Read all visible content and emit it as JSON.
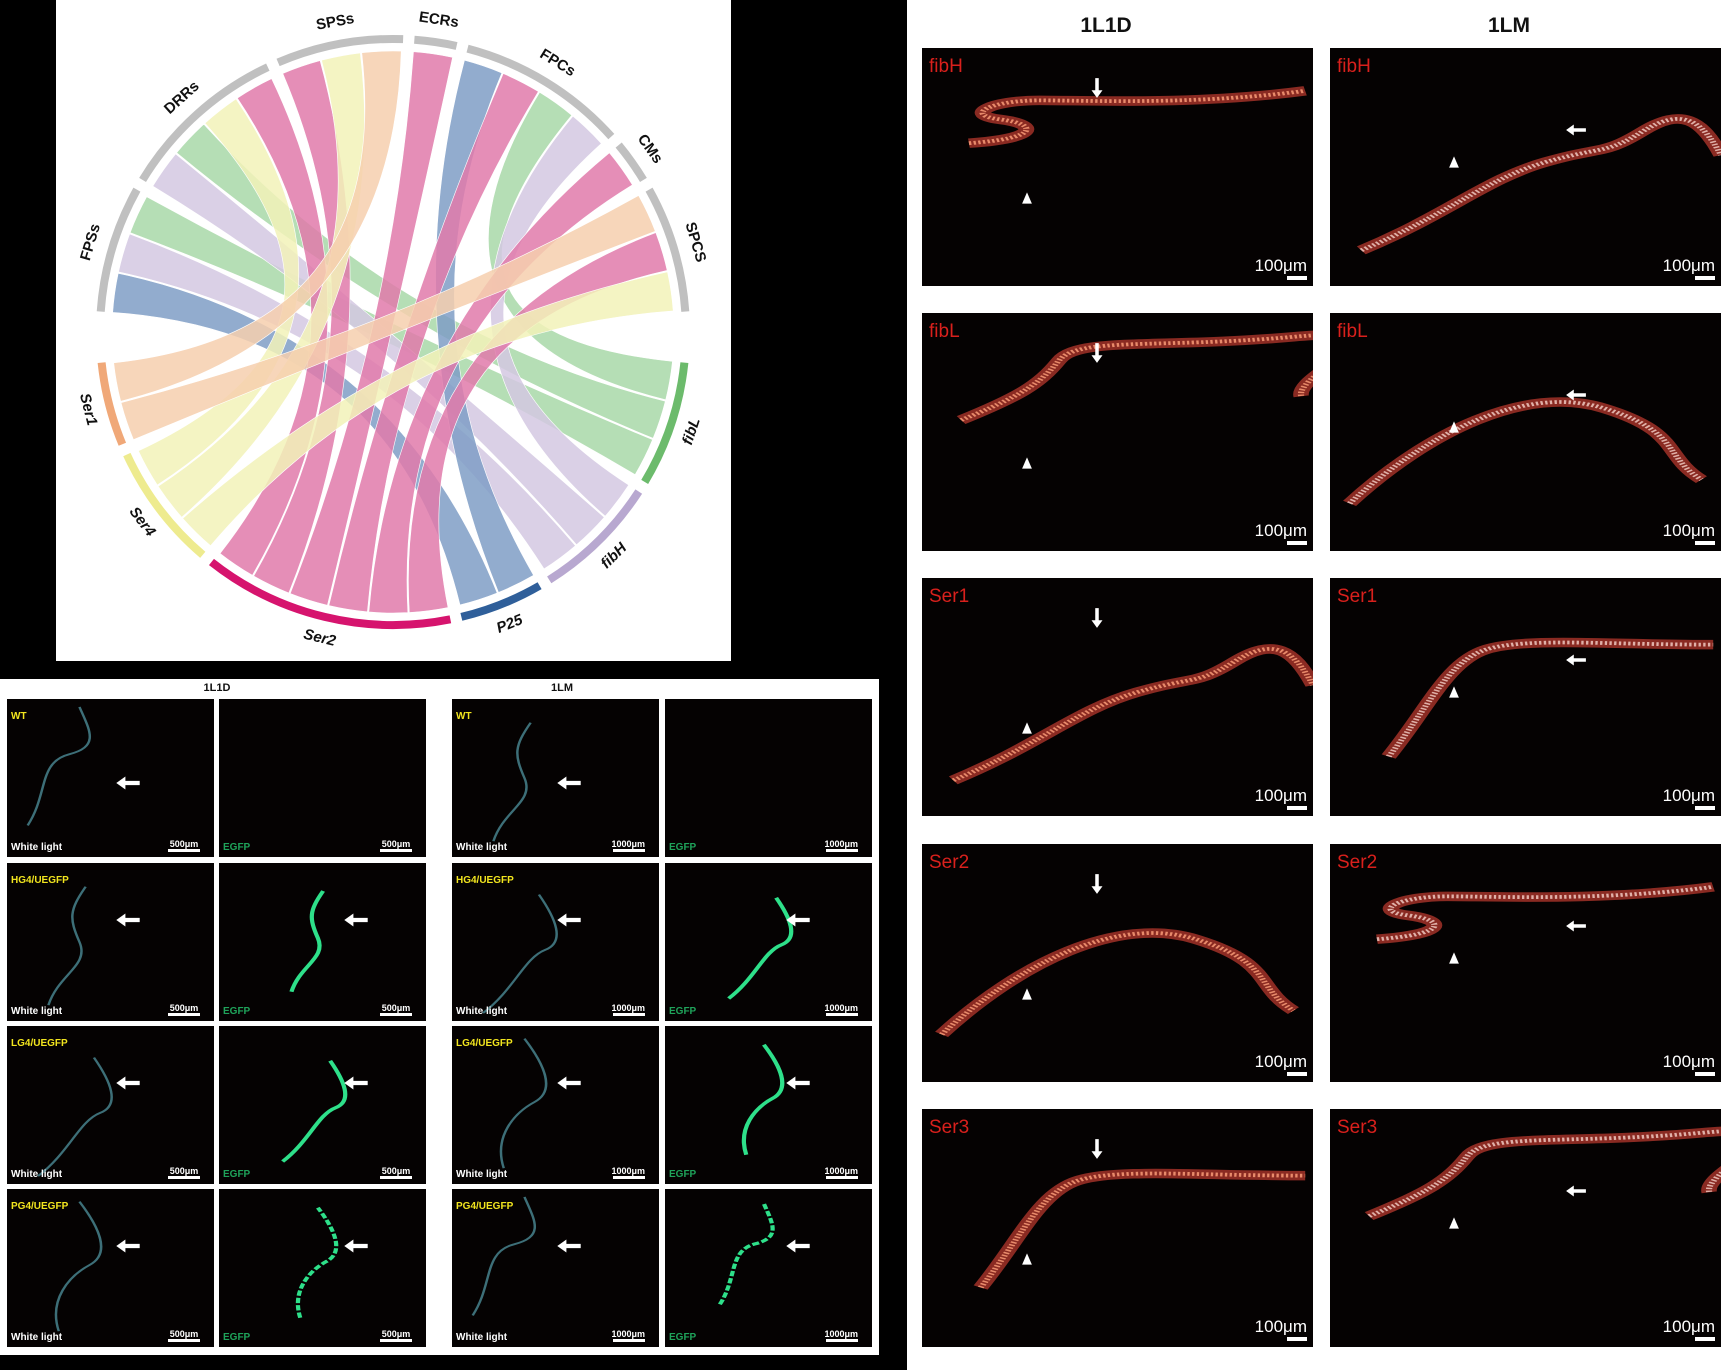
{
  "chord": {
    "top_sectors": [
      {
        "name": "FPSs"
      },
      {
        "name": "DRRs"
      },
      {
        "name": "SPSs"
      },
      {
        "name": "ECRs"
      },
      {
        "name": "FPCs"
      },
      {
        "name": "CMs"
      },
      {
        "name": "SPCS"
      }
    ],
    "genes": [
      {
        "name": "fibL",
        "arc": "#6cbb6c",
        "ribbon": "#a8d8a8"
      },
      {
        "name": "fibH",
        "arc": "#b8a8d0",
        "ribbon": "#d3c8e2"
      },
      {
        "name": "P25",
        "arc": "#2f5f9a",
        "ribbon": "#7f9ec6"
      },
      {
        "name": "Ser2",
        "arc": "#d6146e",
        "ribbon": "#e07aaa"
      },
      {
        "name": "Ser4",
        "arc": "#eeeb8f",
        "ribbon": "#f2f2b8"
      },
      {
        "name": "Ser1",
        "arc": "#f0a878",
        "ribbon": "#f6cfae"
      }
    ],
    "sector_color": "#c0c0c0",
    "links": [
      [
        "FPSs",
        "P25"
      ],
      [
        "FPSs",
        "fibH"
      ],
      [
        "FPSs",
        "fibL"
      ],
      [
        "DRRs",
        "fibH"
      ],
      [
        "DRRs",
        "fibL"
      ],
      [
        "DRRs",
        "Ser4"
      ],
      [
        "DRRs",
        "Ser2"
      ],
      [
        "SPSs",
        "Ser2"
      ],
      [
        "SPSs",
        "Ser4"
      ],
      [
        "SPSs",
        "Ser1"
      ],
      [
        "ECRs",
        "Ser2"
      ],
      [
        "FPCs",
        "P25"
      ],
      [
        "FPCs",
        "Ser2"
      ],
      [
        "FPCs",
        "fibL"
      ],
      [
        "FPCs",
        "fibH"
      ],
      [
        "CMs",
        "Ser2"
      ],
      [
        "SPCS",
        "Ser1"
      ],
      [
        "SPCS",
        "Ser2"
      ],
      [
        "SPCS",
        "Ser4"
      ]
    ]
  },
  "gfp": {
    "columns": [
      {
        "title": "1L1D",
        "scale": "500μm"
      },
      {
        "title": "1LM",
        "scale": "1000μm"
      }
    ],
    "rows": [
      "WT",
      "HG4/UEGFP",
      "LG4/UEGFP",
      "PG4/UEGFP"
    ],
    "white_label": "White light",
    "egfp_label": "EGFP",
    "egfp_color": "#1fa35a"
  },
  "fish": {
    "columns": [
      "1L1D",
      "1LM"
    ],
    "rows": [
      "fibH",
      "fibL",
      "Ser1",
      "Ser2",
      "Ser3"
    ],
    "scale": "100μm"
  }
}
